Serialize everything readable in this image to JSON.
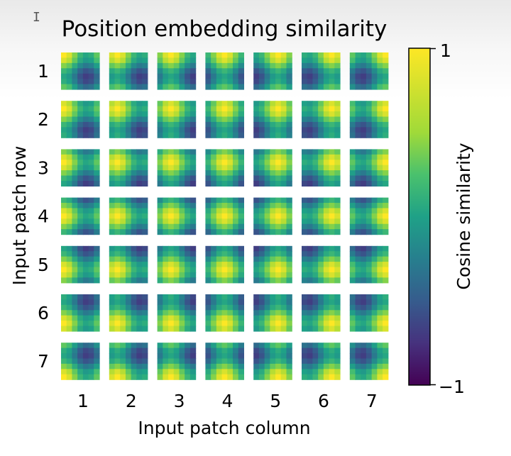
{
  "chart_data": {
    "type": "heatmap",
    "title": "Position embedding similarity",
    "xlabel": "Input patch column",
    "ylabel": "Input patch row",
    "rows": 7,
    "cols": 7,
    "row_labels": [
      "1",
      "2",
      "3",
      "4",
      "5",
      "6",
      "7"
    ],
    "col_labels": [
      "1",
      "2",
      "3",
      "4",
      "5",
      "6",
      "7"
    ],
    "colorbar": {
      "label": "Cosine similarity",
      "range": [
        -1,
        1
      ],
      "tick_labels": [
        "1",
        "−1"
      ],
      "colormap": "viridis"
    },
    "cell_resolution": 7
  },
  "ui": {
    "cursor_glyph": "I"
  }
}
